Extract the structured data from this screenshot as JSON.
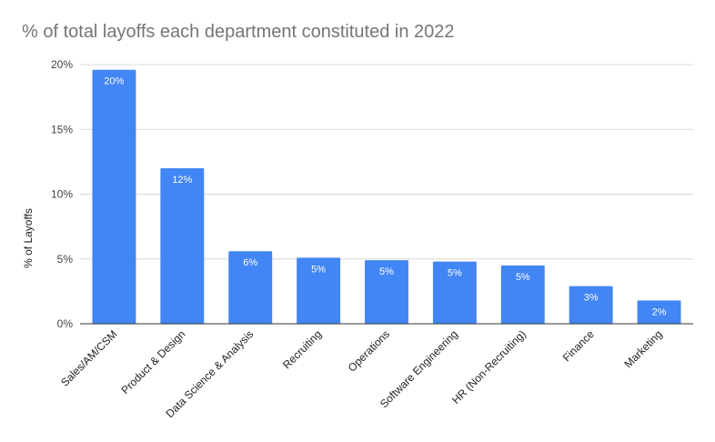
{
  "chart_data": {
    "type": "bar",
    "title": "% of total layoffs each department constituted in 2022",
    "xlabel": "",
    "ylabel": "% of Layoffs",
    "ylim": [
      0,
      20
    ],
    "yticks": [
      "0%",
      "5%",
      "10%",
      "15%",
      "20%"
    ],
    "grid": true,
    "categories": [
      "Sales/AM/CSM",
      "Product & Design",
      "Data Science & Analysis",
      "Recruiting",
      "Operations",
      "Software Engineering",
      "HR (Non-Recruiting)",
      "Finance",
      "Marketing"
    ],
    "values": [
      19.6,
      12.0,
      5.6,
      5.1,
      4.9,
      4.8,
      4.5,
      2.9,
      1.8
    ],
    "data_labels": [
      "20%",
      "12%",
      "6%",
      "5%",
      "5%",
      "5%",
      "5%",
      "3%",
      "2%"
    ],
    "bar_color": "#4285f4"
  }
}
